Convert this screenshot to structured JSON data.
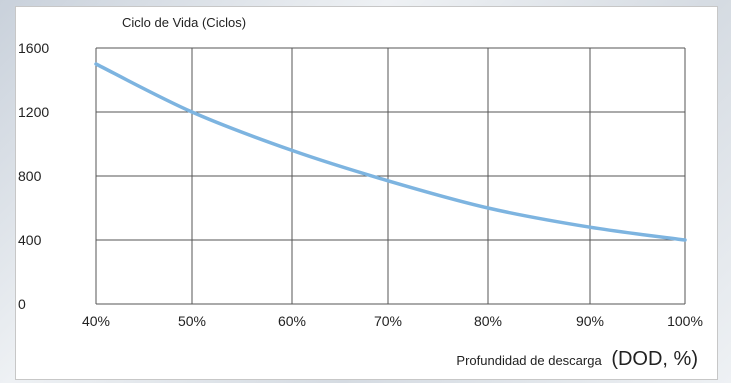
{
  "chart_data": {
    "type": "line",
    "title": "Ciclo de Vida (Ciclos)",
    "xlabel": "Profundidad de descarga",
    "xlabel_unit": "(DOD, %)",
    "ylabel": "",
    "x_ticks": [
      "40%",
      "50%",
      "60%",
      "70%",
      "80%",
      "90%",
      "100%"
    ],
    "y_ticks": [
      "0",
      "400",
      "800",
      "1200",
      "1600"
    ],
    "ylim": [
      0,
      1600
    ],
    "grid": true,
    "series": [
      {
        "color": "#7db4e0",
        "x": [
          "40%",
          "50%",
          "60%",
          "70%",
          "80%",
          "90%",
          "100%"
        ],
        "y": [
          1500,
          1200,
          960,
          770,
          600,
          480,
          400
        ]
      }
    ]
  }
}
